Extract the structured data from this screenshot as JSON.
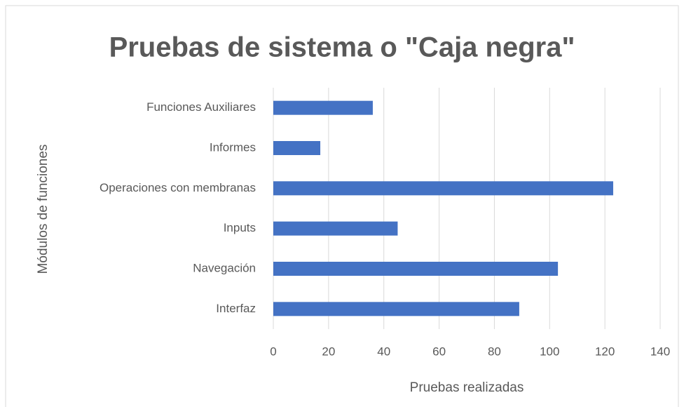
{
  "chart_data": {
    "type": "bar",
    "orientation": "horizontal",
    "title": "Pruebas de sistema o \"Caja negra\"",
    "x_label": "Pruebas realizadas",
    "y_label": "Módulos de funciones",
    "categories": [
      "Funciones Auxiliares",
      "Informes",
      "Operaciones con membranas",
      "Inputs",
      "Navegación",
      "Interfaz"
    ],
    "values": [
      36,
      17,
      123,
      45,
      103,
      89
    ],
    "color": "#4472c4",
    "xlim": [
      0,
      140
    ],
    "xticks": [
      0,
      20,
      40,
      60,
      80,
      100,
      120,
      140
    ],
    "grid": true
  }
}
